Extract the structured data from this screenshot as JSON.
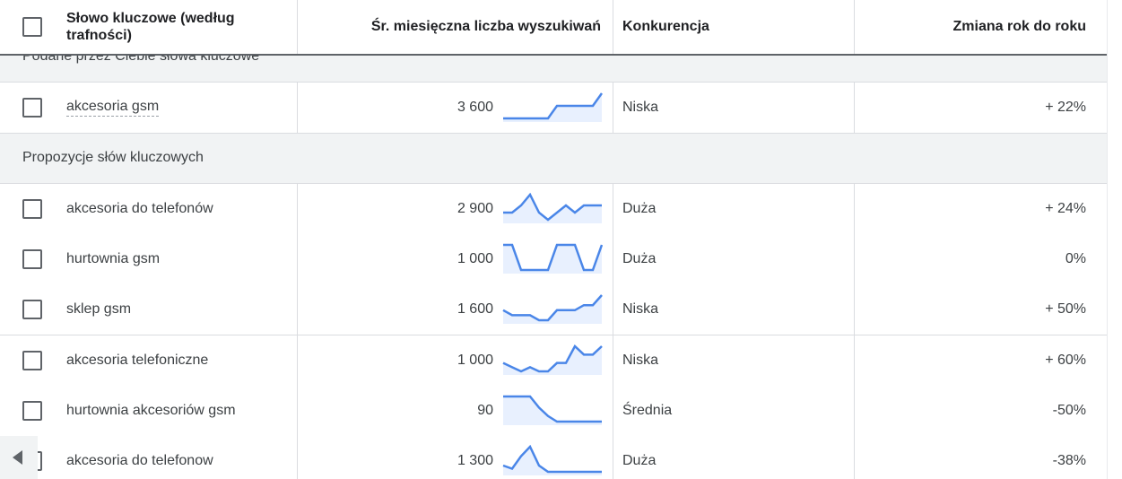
{
  "header": {
    "keyword_col": "Słowo kluczowe (według trafności)",
    "volume_col": "Śr. miesięczna liczba wyszukiwań",
    "competition_col": "Konkurencja",
    "yoy_col": "Zmiana rok do roku"
  },
  "groups": {
    "provided": "Podane przez Ciebie słowa kluczowe",
    "suggested": "Propozycje słów kluczowych"
  },
  "colors": {
    "sparkline": "#4a86e8",
    "sparkfill": "#e8f0fe",
    "group_bg": "#f1f3f4"
  },
  "rows": [
    {
      "keyword": "akcesoria gsm",
      "volume": "3 600",
      "competition": "Niska",
      "yoy": "+ 22%",
      "trend": [
        2,
        2,
        2,
        2,
        2,
        2,
        5,
        5,
        5,
        5,
        5,
        8
      ]
    },
    {
      "keyword": "akcesoria do telefonów",
      "volume": "2 900",
      "competition": "Duża",
      "yoy": "+ 24%",
      "trend": [
        5,
        5,
        7,
        10,
        5,
        3,
        5,
        7,
        5,
        7,
        7,
        7
      ]
    },
    {
      "keyword": "hurtownia gsm",
      "volume": "1 000",
      "competition": "Duża",
      "yoy": "0%",
      "trend": [
        9,
        9,
        2,
        2,
        2,
        2,
        9,
        9,
        9,
        2,
        2,
        9
      ]
    },
    {
      "keyword": "sklep gsm",
      "volume": "1 600",
      "competition": "Niska",
      "yoy": "+ 50%",
      "trend": [
        4,
        3,
        3,
        3,
        2,
        2,
        4,
        4,
        4,
        5,
        5,
        7
      ]
    },
    {
      "keyword": "akcesoria telefoniczne",
      "volume": "1 000",
      "competition": "Niska",
      "yoy": "+ 60%",
      "trend": [
        3,
        2,
        1,
        2,
        1,
        1,
        3,
        3,
        7,
        5,
        5,
        7
      ]
    },
    {
      "keyword": "hurtownia akcesoriów gsm",
      "volume": "90",
      "competition": "Średnia",
      "yoy": "-50%",
      "trend": [
        9,
        9,
        9,
        9,
        5,
        2,
        0,
        0,
        0,
        0,
        0,
        0
      ]
    },
    {
      "keyword": "akcesoria do telefonow",
      "volume": "1 300",
      "competition": "Duża",
      "yoy": "-38%",
      "trend": [
        3,
        2,
        6,
        9,
        3,
        1,
        1,
        1,
        1,
        1,
        1,
        1
      ]
    }
  ]
}
